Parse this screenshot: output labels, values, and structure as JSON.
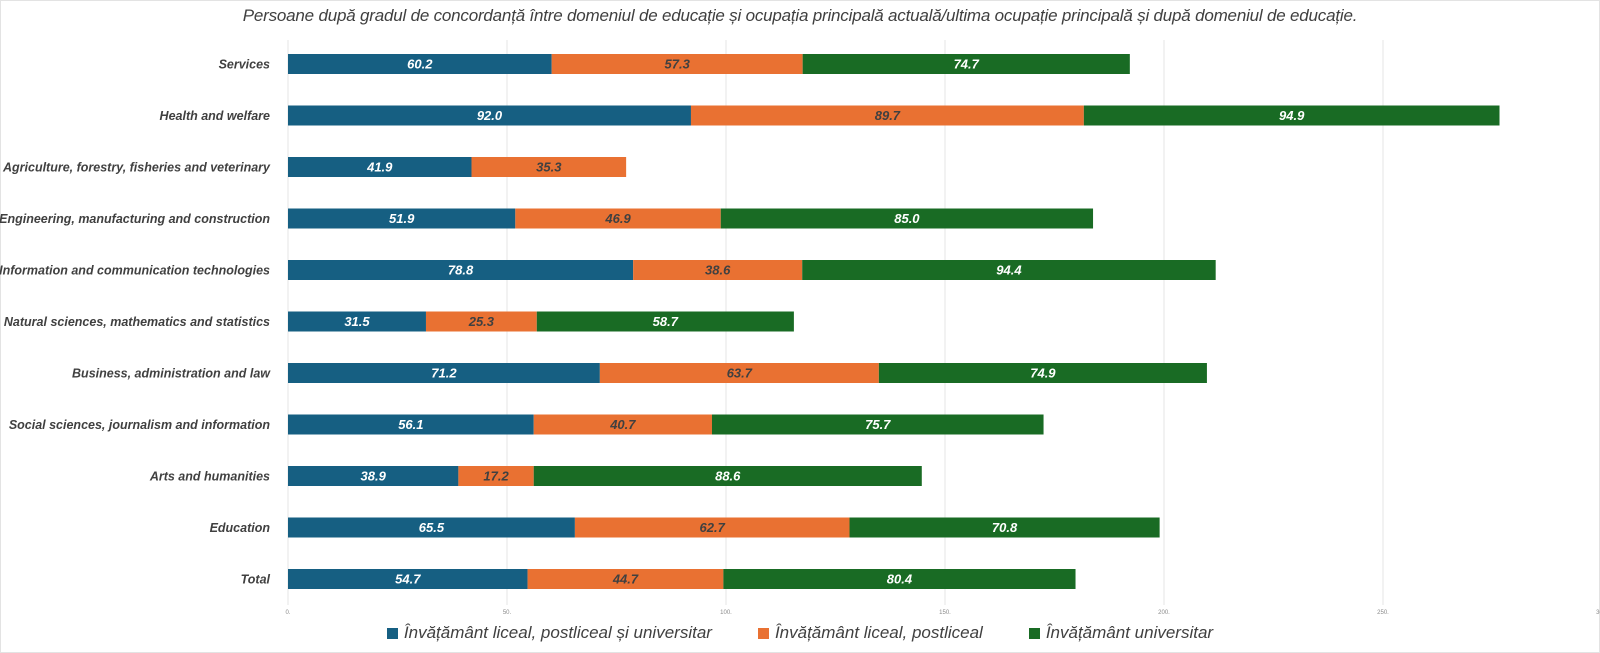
{
  "chart_data": {
    "type": "bar",
    "orientation": "horizontal",
    "stacked": true,
    "title": "Persoane după gradul de concordanță între domeniul de educație și ocupația principală actuală/ultima ocupație principală și după domeniul de educație.",
    "xlabel": "",
    "ylabel": "",
    "xlim": [
      0,
      300
    ],
    "xticks": [
      0,
      50,
      100,
      150,
      200,
      250,
      300
    ],
    "xtick_labels": [
      "0.",
      "50.",
      "100.",
      "150.",
      "200.",
      "250.",
      "300."
    ],
    "grid": true,
    "legend_position": "bottom",
    "categories": [
      "Services",
      "Health and welfare",
      "Agriculture, forestry, fisheries and veterinary",
      "Engineering, manufacturing and construction",
      "Information and communication technologies",
      "Natural sciences, mathematics and statistics",
      "Business, administration and law",
      "Social sciences, journalism and information",
      "Arts and humanities",
      "Education",
      "Total"
    ],
    "series": [
      {
        "name": "Învățământ liceal, postliceal și universitar",
        "color": "#165f82",
        "label_color": "#ffffff",
        "values": [
          60.2,
          92.0,
          41.9,
          51.9,
          78.8,
          31.5,
          71.2,
          56.1,
          38.9,
          65.5,
          54.7
        ],
        "labels": [
          "60.2",
          "92.0",
          "41.9",
          "51.9",
          "78.8",
          "31.5",
          "71.2",
          "56.1",
          "38.9",
          "65.5",
          "54.7"
        ]
      },
      {
        "name": "Învățământ liceal, postliceal",
        "color": "#e97132",
        "label_color": "#404040",
        "values": [
          57.3,
          89.7,
          35.3,
          46.9,
          38.6,
          25.3,
          63.7,
          40.7,
          17.2,
          62.7,
          44.7
        ],
        "labels": [
          "57.3",
          "89.7",
          "35.3",
          "46.9",
          "38.6",
          "25.3",
          "63.7",
          "40.7",
          "17.2",
          "62.7",
          "44.7"
        ]
      },
      {
        "name": "Învățământ universitar",
        "color": "#196b24",
        "label_color": "#ffffff",
        "values": [
          74.7,
          94.9,
          0,
          85.0,
          94.4,
          58.7,
          74.9,
          75.7,
          88.6,
          70.8,
          80.4
        ],
        "labels": [
          "74.7",
          "94.9",
          "0",
          "85.0",
          "94.4",
          "58.7",
          "74.9",
          "75.7",
          "88.6",
          "70.8",
          "80.4"
        ]
      }
    ]
  }
}
